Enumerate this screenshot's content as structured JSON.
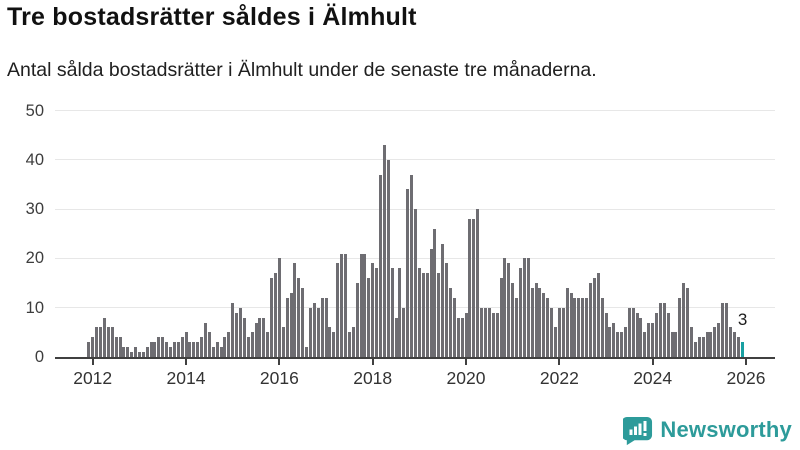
{
  "header": {
    "title": "Tre bostadsrätter såldes i Älmhult",
    "subtitle": "Antal sålda bostadsrätter i Älmhult under de senaste tre månaderna."
  },
  "chart_data": {
    "type": "bar",
    "title": "Tre bostadsrätter såldes i Älmhult",
    "subtitle": "Antal sålda bostadsrätter i Älmhult under de senaste tre månaderna.",
    "start_month": "2011-12",
    "end_month": "2025-12",
    "frequency": "monthly",
    "ylim": [
      0,
      50
    ],
    "y_ticks": [
      0,
      10,
      20,
      30,
      40,
      50
    ],
    "x_ticks": [
      2012,
      2014,
      2016,
      2018,
      2020,
      2022,
      2024,
      2026
    ],
    "grid": true,
    "values": [
      3,
      4,
      6,
      6,
      8,
      6,
      6,
      4,
      4,
      2,
      2,
      1,
      2,
      1,
      1,
      2,
      3,
      3,
      4,
      4,
      3,
      2,
      3,
      3,
      4,
      5,
      3,
      3,
      3,
      4,
      7,
      5,
      2,
      3,
      2,
      4,
      5,
      11,
      9,
      10,
      8,
      4,
      5,
      7,
      8,
      8,
      5,
      16,
      17,
      20,
      6,
      12,
      13,
      19,
      16,
      14,
      2,
      10,
      11,
      10,
      12,
      12,
      6,
      5,
      19,
      21,
      21,
      5,
      6,
      15,
      21,
      21,
      16,
      19,
      18,
      37,
      43,
      40,
      18,
      8,
      18,
      10,
      34,
      37,
      30,
      18,
      17,
      17,
      22,
      26,
      17,
      23,
      19,
      14,
      12,
      8,
      8,
      9,
      28,
      28,
      30,
      10,
      10,
      10,
      9,
      9,
      16,
      20,
      19,
      15,
      12,
      18,
      20,
      20,
      14,
      15,
      14,
      13,
      12,
      10,
      6,
      10,
      10,
      14,
      13,
      12,
      12,
      12,
      12,
      15,
      16,
      17,
      12,
      9,
      6,
      7,
      5,
      5,
      6,
      10,
      10,
      9,
      8,
      5,
      7,
      7,
      9,
      11,
      11,
      9,
      5,
      5,
      12,
      15,
      14,
      6,
      3,
      4,
      4,
      5,
      5,
      6,
      7,
      11,
      11,
      6,
      5,
      4,
      3
    ],
    "highlight": {
      "value": 3,
      "label": "3"
    },
    "colors": {
      "bar": "#6e6d72",
      "highlight": "#18a0a2",
      "grid": "#e7e7e7",
      "axis": "#404040",
      "tick_label": "#333333"
    }
  },
  "footer": {
    "brand": "Newsworthy",
    "brand_color": "#2d9b9a",
    "logo_icon": "newsworthy-speech-bubble-barchart-icon"
  }
}
